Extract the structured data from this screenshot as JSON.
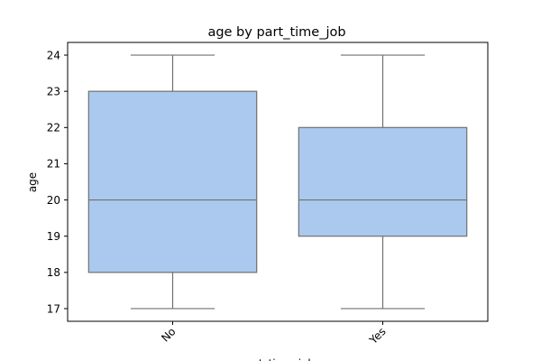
{
  "chart_data": {
    "type": "box",
    "title": "age by part_time_job",
    "xlabel": "part_time_job",
    "ylabel": "age",
    "categories": [
      "No",
      "Yes"
    ],
    "boxes": [
      {
        "category": "No",
        "min": 17,
        "q1": 18,
        "median": 20,
        "q3": 23,
        "max": 24
      },
      {
        "category": "Yes",
        "min": 17,
        "q1": 19,
        "median": 20,
        "q3": 22,
        "max": 24
      }
    ],
    "y_ticks": [
      17,
      18,
      19,
      20,
      21,
      22,
      23,
      24
    ],
    "ylim": [
      16.65,
      24.35
    ],
    "grid": false,
    "legend": "none",
    "colors": {
      "box_fill": "#abc9ee",
      "box_line": "#707070"
    },
    "xtick_rotation_deg": 45
  }
}
